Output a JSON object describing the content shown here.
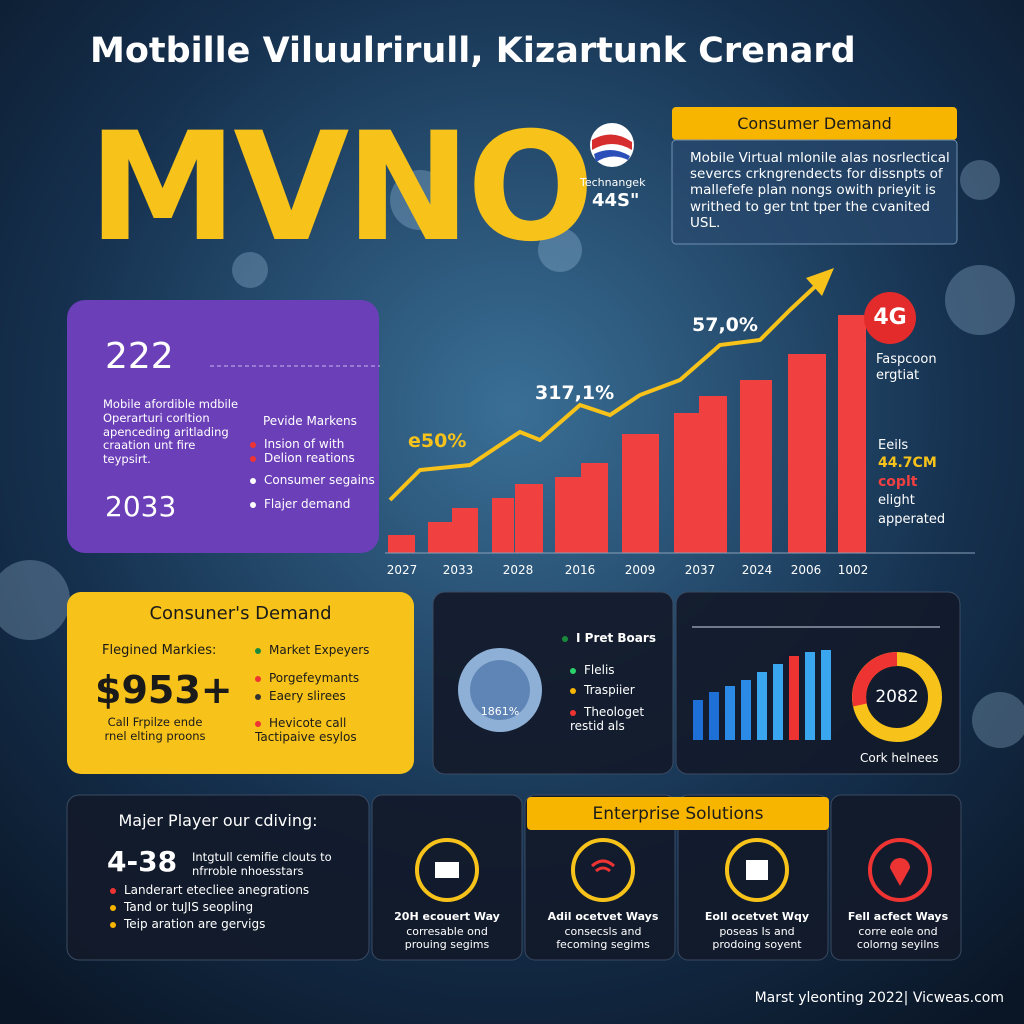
{
  "header": {
    "title": "Motbille Viluulrirull, Kizartunk Crenard",
    "big": "MVNO",
    "badge_label": "Technangek",
    "badge_value": "44S\""
  },
  "demand_box": {
    "title": "Consumer Demand",
    "body": "Mobile Virtual mlonile alas nosrlectical severcs crkngrendects for dissnpts of mallefefe plan nongs owith prieyit is writhed to ger tnt tper the cvanited USL."
  },
  "purple_card": {
    "year_top": "222",
    "body": "Mobile afordible mdbile Operarturi corltion apenceding aritlading craation unt fire teypsirt.",
    "year_bottom": "2033",
    "list": [
      "Pevide Markens",
      "Insion of with",
      "Delion reations",
      "Consumer segains",
      "Flajer demand"
    ]
  },
  "growth_chart": {
    "labels": [
      "57,0%",
      "317,1%",
      "e50%",
      "4G"
    ],
    "x_labels": [
      "2027",
      "2033",
      "2028",
      "2016",
      "2009",
      "2037",
      "2024",
      "2006",
      "1002"
    ],
    "side_top": "Faspcoon ergtiat",
    "side_lines": [
      "Eeils",
      "44.7CM",
      "coplt",
      "elight",
      "apperated"
    ]
  },
  "yellow_card": {
    "title": "Consuner's Demand",
    "subtitle": "Flegined Markies:",
    "value": "$953+",
    "caption": "Call Frpilze ende rnel elting proons",
    "list": [
      "Market Expeyers",
      "Porgefeymants",
      "Eaery slirees",
      "Hevicote call Tactipaive esylos"
    ]
  },
  "globe_card": {
    "title": "I Pret Boars",
    "globe_label": "1861%",
    "list": [
      "Flelis",
      "Traspiier",
      "Theologet restid als"
    ]
  },
  "donut_card": {
    "value": "2082",
    "caption": "Cork helnees"
  },
  "players_card": {
    "title": "Majer Player our cdiving:",
    "value": "4-38",
    "value_text": "Intgtull cemifie clouts to nfrroble nhoesstars",
    "list": [
      "Landerart etecliee anegrations",
      "Tand or tuJIS seopling",
      "Teip aration are gervigs"
    ]
  },
  "enterprise": {
    "title": "Enterprise Solutions",
    "cards": [
      {
        "title": "20H ecouert Way",
        "text": "corresable ond prouing segims"
      },
      {
        "title": "Adil ocetvet Ways",
        "text": "consecsls and fecoming segims"
      },
      {
        "title": "Eoll ocetvet Wqy",
        "text": "poseas Is and prodoing soyent"
      },
      {
        "title": "Fell acfect Ways",
        "text": "corre eole ond colorng seyilns"
      }
    ]
  },
  "footer": "Marst yleonting 2022| Vicweas.com"
}
